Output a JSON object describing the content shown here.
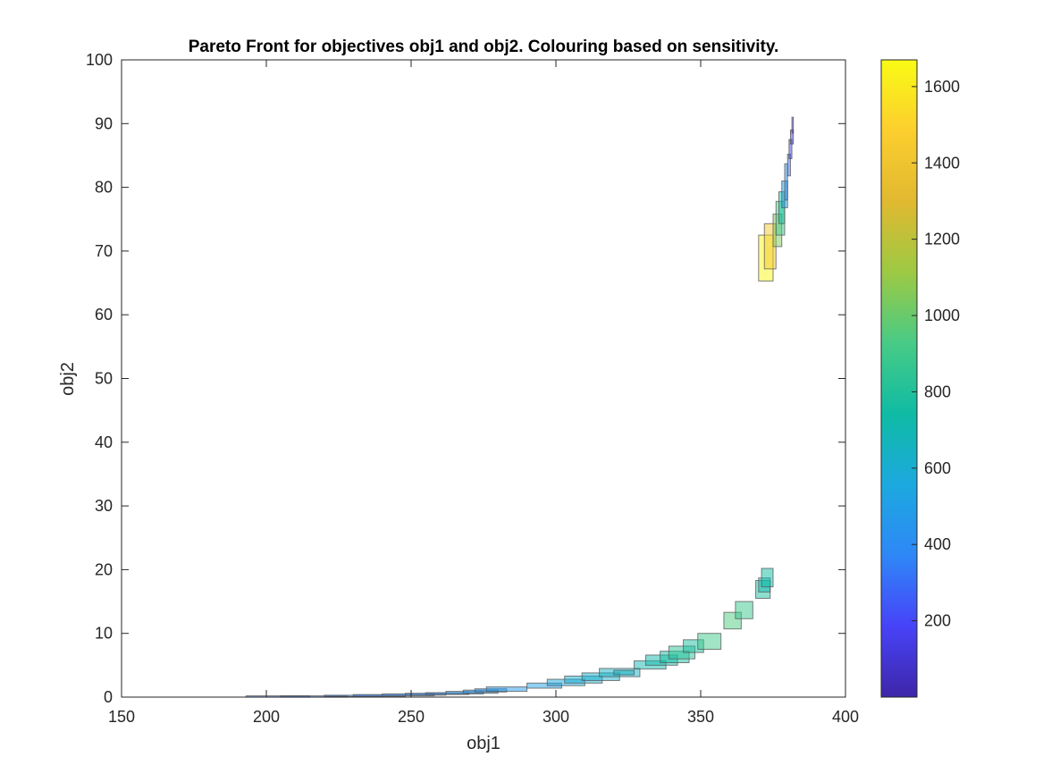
{
  "chart_data": {
    "type": "scatter",
    "title": "Pareto Front for objectives obj1 and obj2. Colouring based on sensitivity.",
    "xlabel": "obj1",
    "ylabel": "obj2",
    "xlim": [
      150,
      400
    ],
    "ylim": [
      0,
      100
    ],
    "xticks": [
      "150",
      "200",
      "250",
      "300",
      "350",
      "400"
    ],
    "yticks": [
      "0",
      "10",
      "20",
      "30",
      "40",
      "50",
      "60",
      "70",
      "80",
      "90",
      "100"
    ],
    "grid": false,
    "marker": "rectangle (width/height = spread in obj1/obj2)",
    "colorbar": {
      "range": [
        0,
        1670
      ],
      "ticks": [
        "200",
        "400",
        "600",
        "800",
        "1000",
        "1200",
        "1400",
        "1600"
      ],
      "colormap": [
        "#3e26a8",
        "#4743f8",
        "#2e87f7",
        "#1ca9df",
        "#0fbba4",
        "#48cb86",
        "#9dc943",
        "#e1b931",
        "#fcce2e",
        "#f9fb15"
      ]
    },
    "points": [
      {
        "x1": 193,
        "x2": 215,
        "y1": 0.0,
        "y2": 0.2,
        "s": 300
      },
      {
        "x1": 205,
        "x2": 228,
        "y1": 0.0,
        "y2": 0.2,
        "s": 320
      },
      {
        "x1": 220,
        "x2": 240,
        "y1": 0.1,
        "y2": 0.3,
        "s": 340
      },
      {
        "x1": 230,
        "x2": 248,
        "y1": 0.1,
        "y2": 0.4,
        "s": 360
      },
      {
        "x1": 240,
        "x2": 258,
        "y1": 0.2,
        "y2": 0.5,
        "s": 380
      },
      {
        "x1": 248,
        "x2": 262,
        "y1": 0.3,
        "y2": 0.6,
        "s": 400
      },
      {
        "x1": 255,
        "x2": 270,
        "y1": 0.4,
        "y2": 0.7,
        "s": 420
      },
      {
        "x1": 262,
        "x2": 275,
        "y1": 0.5,
        "y2": 0.9,
        "s": 430
      },
      {
        "x1": 268,
        "x2": 280,
        "y1": 0.6,
        "y2": 1.1,
        "s": 440
      },
      {
        "x1": 272,
        "x2": 283,
        "y1": 0.8,
        "y2": 1.3,
        "s": 450
      },
      {
        "x1": 276,
        "x2": 290,
        "y1": 0.9,
        "y2": 1.6,
        "s": 470
      },
      {
        "x1": 290,
        "x2": 302,
        "y1": 1.4,
        "y2": 2.2,
        "s": 500
      },
      {
        "x1": 297,
        "x2": 310,
        "y1": 1.8,
        "y2": 2.8,
        "s": 560
      },
      {
        "x1": 303,
        "x2": 316,
        "y1": 2.2,
        "y2": 3.3,
        "s": 600
      },
      {
        "x1": 309,
        "x2": 322,
        "y1": 2.6,
        "y2": 3.8,
        "s": 620
      },
      {
        "x1": 315,
        "x2": 329,
        "y1": 3.2,
        "y2": 4.5,
        "s": 640
      },
      {
        "x1": 320,
        "x2": 327,
        "y1": 3.5,
        "y2": 4.2,
        "s": 650
      },
      {
        "x1": 327,
        "x2": 338,
        "y1": 4.4,
        "y2": 5.7,
        "s": 700
      },
      {
        "x1": 331,
        "x2": 342,
        "y1": 5.0,
        "y2": 6.6,
        "s": 720
      },
      {
        "x1": 336,
        "x2": 346,
        "y1": 5.4,
        "y2": 7.2,
        "s": 760
      },
      {
        "x1": 339,
        "x2": 348,
        "y1": 6.0,
        "y2": 8.0,
        "s": 820
      },
      {
        "x1": 344,
        "x2": 351,
        "y1": 7.0,
        "y2": 9.0,
        "s": 780
      },
      {
        "x1": 349,
        "x2": 357,
        "y1": 7.5,
        "y2": 10.0,
        "s": 900
      },
      {
        "x1": 358,
        "x2": 364,
        "y1": 10.7,
        "y2": 13.3,
        "s": 940
      },
      {
        "x1": 362,
        "x2": 368,
        "y1": 12.3,
        "y2": 15.0,
        "s": 880
      },
      {
        "x1": 369,
        "x2": 374,
        "y1": 15.5,
        "y2": 18.3,
        "s": 780
      },
      {
        "x1": 370,
        "x2": 374,
        "y1": 16.5,
        "y2": 18.7,
        "s": 700
      },
      {
        "x1": 371,
        "x2": 375,
        "y1": 17.3,
        "y2": 20.2,
        "s": 740
      },
      {
        "x1": 370,
        "x2": 375,
        "y1": 65.3,
        "y2": 72.5,
        "s": 1650
      },
      {
        "x1": 372,
        "x2": 376,
        "y1": 67.2,
        "y2": 74.3,
        "s": 1420
      },
      {
        "x1": 375,
        "x2": 378,
        "y1": 70.7,
        "y2": 75.8,
        "s": 1050
      },
      {
        "x1": 376,
        "x2": 379,
        "y1": 72.5,
        "y2": 77.8,
        "s": 900
      },
      {
        "x1": 377,
        "x2": 379,
        "y1": 74.3,
        "y2": 79.3,
        "s": 760
      },
      {
        "x1": 378,
        "x2": 380,
        "y1": 76.8,
        "y2": 81.0,
        "s": 480
      },
      {
        "x1": 379,
        "x2": 380,
        "y1": 78.0,
        "y2": 83.7,
        "s": 420
      },
      {
        "x1": 380,
        "x2": 381,
        "y1": 81.8,
        "y2": 85.2,
        "s": 300
      },
      {
        "x1": 380.5,
        "x2": 381.5,
        "y1": 84.5,
        "y2": 87.5,
        "s": 200
      },
      {
        "x1": 381,
        "x2": 382,
        "y1": 86.8,
        "y2": 89.0,
        "s": 150
      },
      {
        "x1": 381.5,
        "x2": 382,
        "y1": 88.5,
        "y2": 91.0,
        "s": 100
      }
    ]
  }
}
